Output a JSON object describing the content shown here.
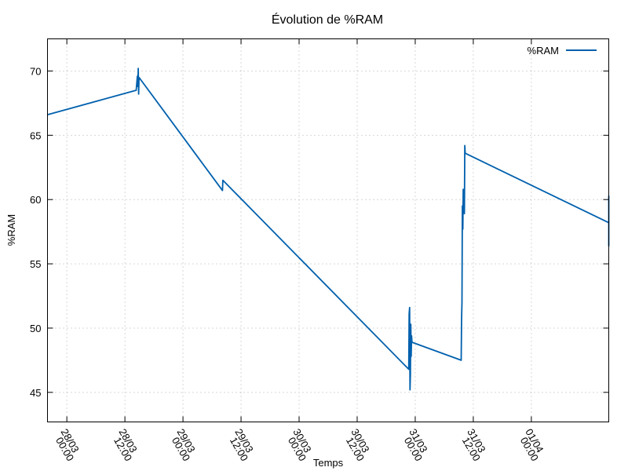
{
  "chart_data": {
    "type": "line",
    "title": "Évolution de %RAM",
    "xlabel": "Temps",
    "ylabel": "%RAM",
    "x_unit": "date-time (dd/mm hh:mm)",
    "xlim": [
      "27/03 20:00",
      "01/04 16:00"
    ],
    "ylim": [
      42.7,
      72.5
    ],
    "y_ticks": [
      45,
      50,
      55,
      60,
      65,
      70
    ],
    "x_ticks": [
      {
        "x": "28/03 00:00",
        "line1": "28/03",
        "line2": "00:00"
      },
      {
        "x": "28/03 12:00",
        "line1": "28/03",
        "line2": "12:00"
      },
      {
        "x": "29/03 00:00",
        "line1": "29/03",
        "line2": "00:00"
      },
      {
        "x": "29/03 12:00",
        "line1": "29/03",
        "line2": "12:00"
      },
      {
        "x": "30/03 00:00",
        "line1": "30/03",
        "line2": "00:00"
      },
      {
        "x": "30/03 12:00",
        "line1": "30/03",
        "line2": "12:00"
      },
      {
        "x": "31/03 00:00",
        "line1": "31/03",
        "line2": "00:00"
      },
      {
        "x": "31/03 12:00",
        "line1": "31/03",
        "line2": "12:00"
      },
      {
        "x": "01/04 00:00",
        "line1": "01/04",
        "line2": "00:00"
      }
    ],
    "grid": true,
    "legend_position": "top-right",
    "series": [
      {
        "name": "%RAM",
        "color": "#0060ad",
        "points": [
          {
            "x": "27/03 20:00",
            "y": 66.6
          },
          {
            "x": "28/03 14:20",
            "y": 68.5
          },
          {
            "x": "28/03 14:35",
            "y": 69.6
          },
          {
            "x": "28/03 14:40",
            "y": 68.8
          },
          {
            "x": "28/03 14:45",
            "y": 70.2
          },
          {
            "x": "28/03 14:50",
            "y": 68.2
          },
          {
            "x": "28/03 14:55",
            "y": 69.5
          },
          {
            "x": "29/03 08:10",
            "y": 60.7
          },
          {
            "x": "29/03 08:15",
            "y": 61.5
          },
          {
            "x": "30/03 22:40",
            "y": 46.8
          },
          {
            "x": "30/03 22:45",
            "y": 51.1
          },
          {
            "x": "30/03 22:50",
            "y": 51.6
          },
          {
            "x": "30/03 22:55",
            "y": 45.2
          },
          {
            "x": "30/03 23:00",
            "y": 46.4
          },
          {
            "x": "30/03 23:05",
            "y": 50.3
          },
          {
            "x": "30/03 23:10",
            "y": 47.8
          },
          {
            "x": "30/03 23:15",
            "y": 49.4
          },
          {
            "x": "30/03 23:20",
            "y": 48.9
          },
          {
            "x": "31/03 09:30",
            "y": 47.5
          },
          {
            "x": "31/03 09:35",
            "y": 50.7
          },
          {
            "x": "31/03 09:40",
            "y": 52.0
          },
          {
            "x": "31/03 09:45",
            "y": 59.5
          },
          {
            "x": "31/03 09:50",
            "y": 57.7
          },
          {
            "x": "31/03 09:55",
            "y": 60.8
          },
          {
            "x": "31/03 10:00",
            "y": 59.8
          },
          {
            "x": "31/03 10:05",
            "y": 60.6
          },
          {
            "x": "31/03 10:10",
            "y": 58.9
          },
          {
            "x": "31/03 10:15",
            "y": 64.2
          },
          {
            "x": "31/03 10:20",
            "y": 63.6
          },
          {
            "x": "01/04 16:00",
            "y": 58.2
          },
          {
            "x": "01/04 16:00",
            "y": 56.4
          },
          {
            "x": "01/04 16:00",
            "y": 60.3
          }
        ]
      }
    ]
  }
}
